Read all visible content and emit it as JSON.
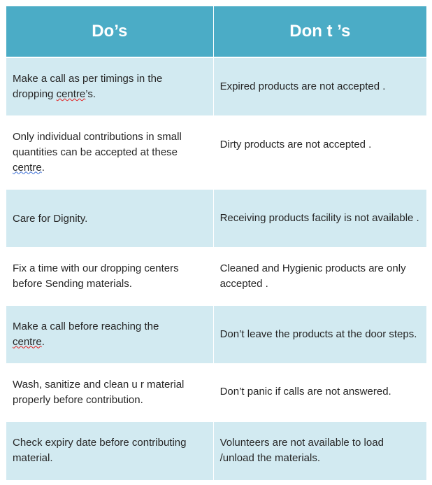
{
  "headers": {
    "dos": "Do’s",
    "donts": "Don t ’s"
  },
  "rows": [
    {
      "do": [
        "Make a call as  per timings in the",
        "dropping ",
        "centre",
        "’s."
      ],
      "dont": "Expired products are not accepted ."
    },
    {
      "do": [
        "Only individual contributions in small",
        "quantities can be accepted at these",
        "centre",
        "."
      ],
      "dont": "Dirty products are not accepted  ."
    },
    {
      "do": [
        "Care for  Dignity."
      ],
      "dont": "Receiving products facility is not available ."
    },
    {
      "do": [
        "Fix a time with our dropping centers before Sending materials."
      ],
      "dont": "Cleaned and Hygienic products are only accepted ."
    },
    {
      "do": [
        "Make a call before reaching the",
        "centre",
        "."
      ],
      "dont": "Don’t leave the products at the  door steps."
    },
    {
      "do": [
        "Wash, sanitize and clean u r material properly before contribution."
      ],
      "dont": "Don’t panic if calls are not answered."
    },
    {
      "do": [
        "Check expiry  date before contributing material."
      ],
      "dont": "Volunteers are not available to load /unload the materials."
    }
  ]
}
